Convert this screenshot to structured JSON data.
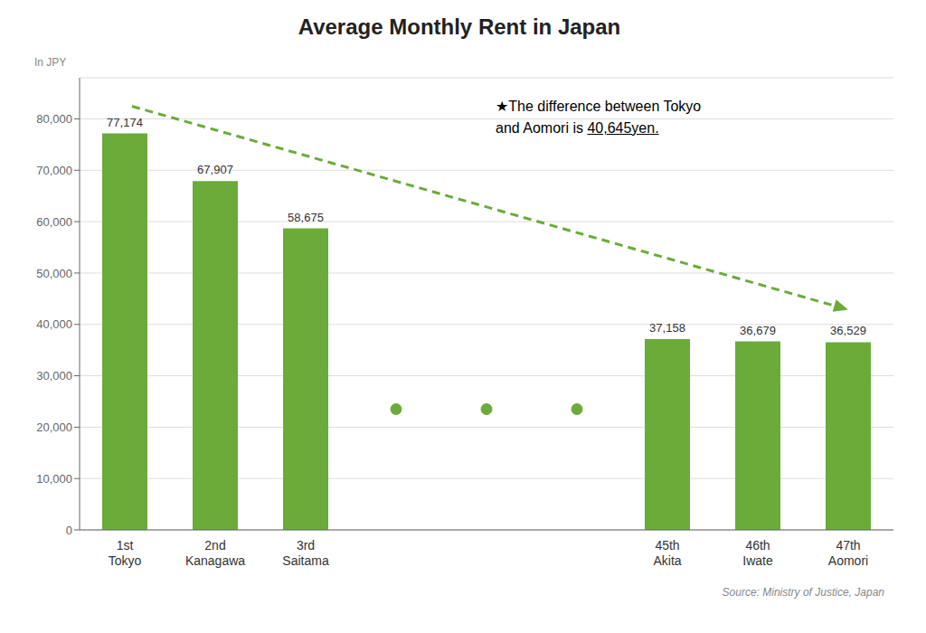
{
  "chart_data": {
    "type": "bar",
    "title": "Average Monthly Rent in Japan",
    "ylabel": "In JPY",
    "categories": [
      "1st\nTokyo",
      "2nd\nKanagawa",
      "3rd\nSaitama",
      null,
      null,
      null,
      "45th\nAkita",
      "46th\nIwate",
      "47th\nAomori"
    ],
    "values": [
      77174,
      67907,
      58675,
      null,
      null,
      null,
      37158,
      36679,
      36529
    ],
    "value_labels": [
      "77,174",
      "67,907",
      "58,675",
      null,
      null,
      null,
      "37,158",
      "36,679",
      "36,529"
    ],
    "data_labels": true,
    "dot_values": [
      null,
      null,
      null,
      23500,
      23500,
      23500,
      null,
      null,
      null
    ],
    "color": "#6aab3a",
    "ylim": [
      0,
      88000
    ],
    "yticks": [
      0,
      {
        "value": 10000,
        "label": "10,000"
      },
      {
        "value": 20000,
        "label": "20,000"
      },
      {
        "value": 30000,
        "label": "30,000"
      },
      {
        "value": 40000,
        "label": "40,000"
      },
      {
        "value": 50000,
        "label": "50,000"
      },
      {
        "value": 60000,
        "label": "60,000"
      },
      {
        "value": 70000,
        "label": "70,000"
      },
      {
        "value": 80000,
        "label": "80,000"
      }
    ],
    "grid": true,
    "annotations": [
      "★The difference between Tokyo",
      "and Aomori is "
    ],
    "annotation_underline": "40,645yen.",
    "source": "Source: Ministry of Justice, Japan"
  }
}
